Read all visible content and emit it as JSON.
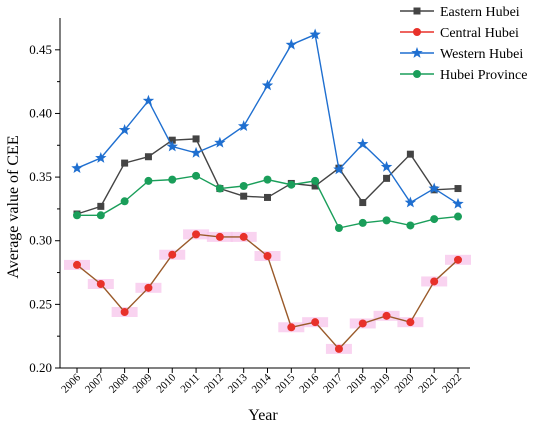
{
  "chart_data": {
    "type": "line",
    "title": "",
    "xlabel": "Year",
    "ylabel": "Average value of CEE",
    "ylim": [
      0.2,
      0.475
    ],
    "yticks": [
      0.2,
      0.25,
      0.3,
      0.35,
      0.4,
      0.45
    ],
    "ytick_labels": [
      "0.20",
      "0.25",
      "0.30",
      "0.35",
      "0.40",
      "0.45"
    ],
    "categories": [
      "2006",
      "2007",
      "2008",
      "2009",
      "2010",
      "2011",
      "2012",
      "2013",
      "2014",
      "2015",
      "2016",
      "2017",
      "2018",
      "2019",
      "2020",
      "2021",
      "2022"
    ],
    "legend_position": "top-right",
    "grid": false,
    "series": [
      {
        "name": "Eastern Hubei",
        "color": "#444444",
        "marker": "square",
        "values": [
          0.321,
          0.327,
          0.361,
          0.366,
          0.379,
          0.38,
          0.341,
          0.335,
          0.334,
          0.345,
          0.343,
          0.357,
          0.33,
          0.349,
          0.368,
          0.34,
          0.341
        ]
      },
      {
        "name": "Central Hubei",
        "color": "#e8312a",
        "line_color": "#9a5a2a",
        "marker": "circle",
        "highlight_color": "#f7c8ec",
        "values": [
          0.281,
          0.266,
          0.244,
          0.263,
          0.289,
          0.305,
          0.303,
          0.303,
          0.288,
          0.232,
          0.236,
          0.215,
          0.235,
          0.241,
          0.236,
          0.268,
          0.285
        ]
      },
      {
        "name": "Western Hubei",
        "color": "#1f6fd0",
        "marker": "star",
        "values": [
          0.357,
          0.365,
          0.387,
          0.41,
          0.374,
          0.369,
          0.377,
          0.39,
          0.422,
          0.454,
          0.462,
          0.356,
          0.376,
          0.358,
          0.33,
          0.341,
          0.329
        ]
      },
      {
        "name": "Hubei Province",
        "color": "#1a9e5a",
        "marker": "circle",
        "values": [
          0.32,
          0.32,
          0.331,
          0.347,
          0.348,
          0.351,
          0.341,
          0.343,
          0.348,
          0.344,
          0.347,
          0.31,
          0.314,
          0.316,
          0.312,
          0.317,
          0.319
        ]
      }
    ]
  }
}
